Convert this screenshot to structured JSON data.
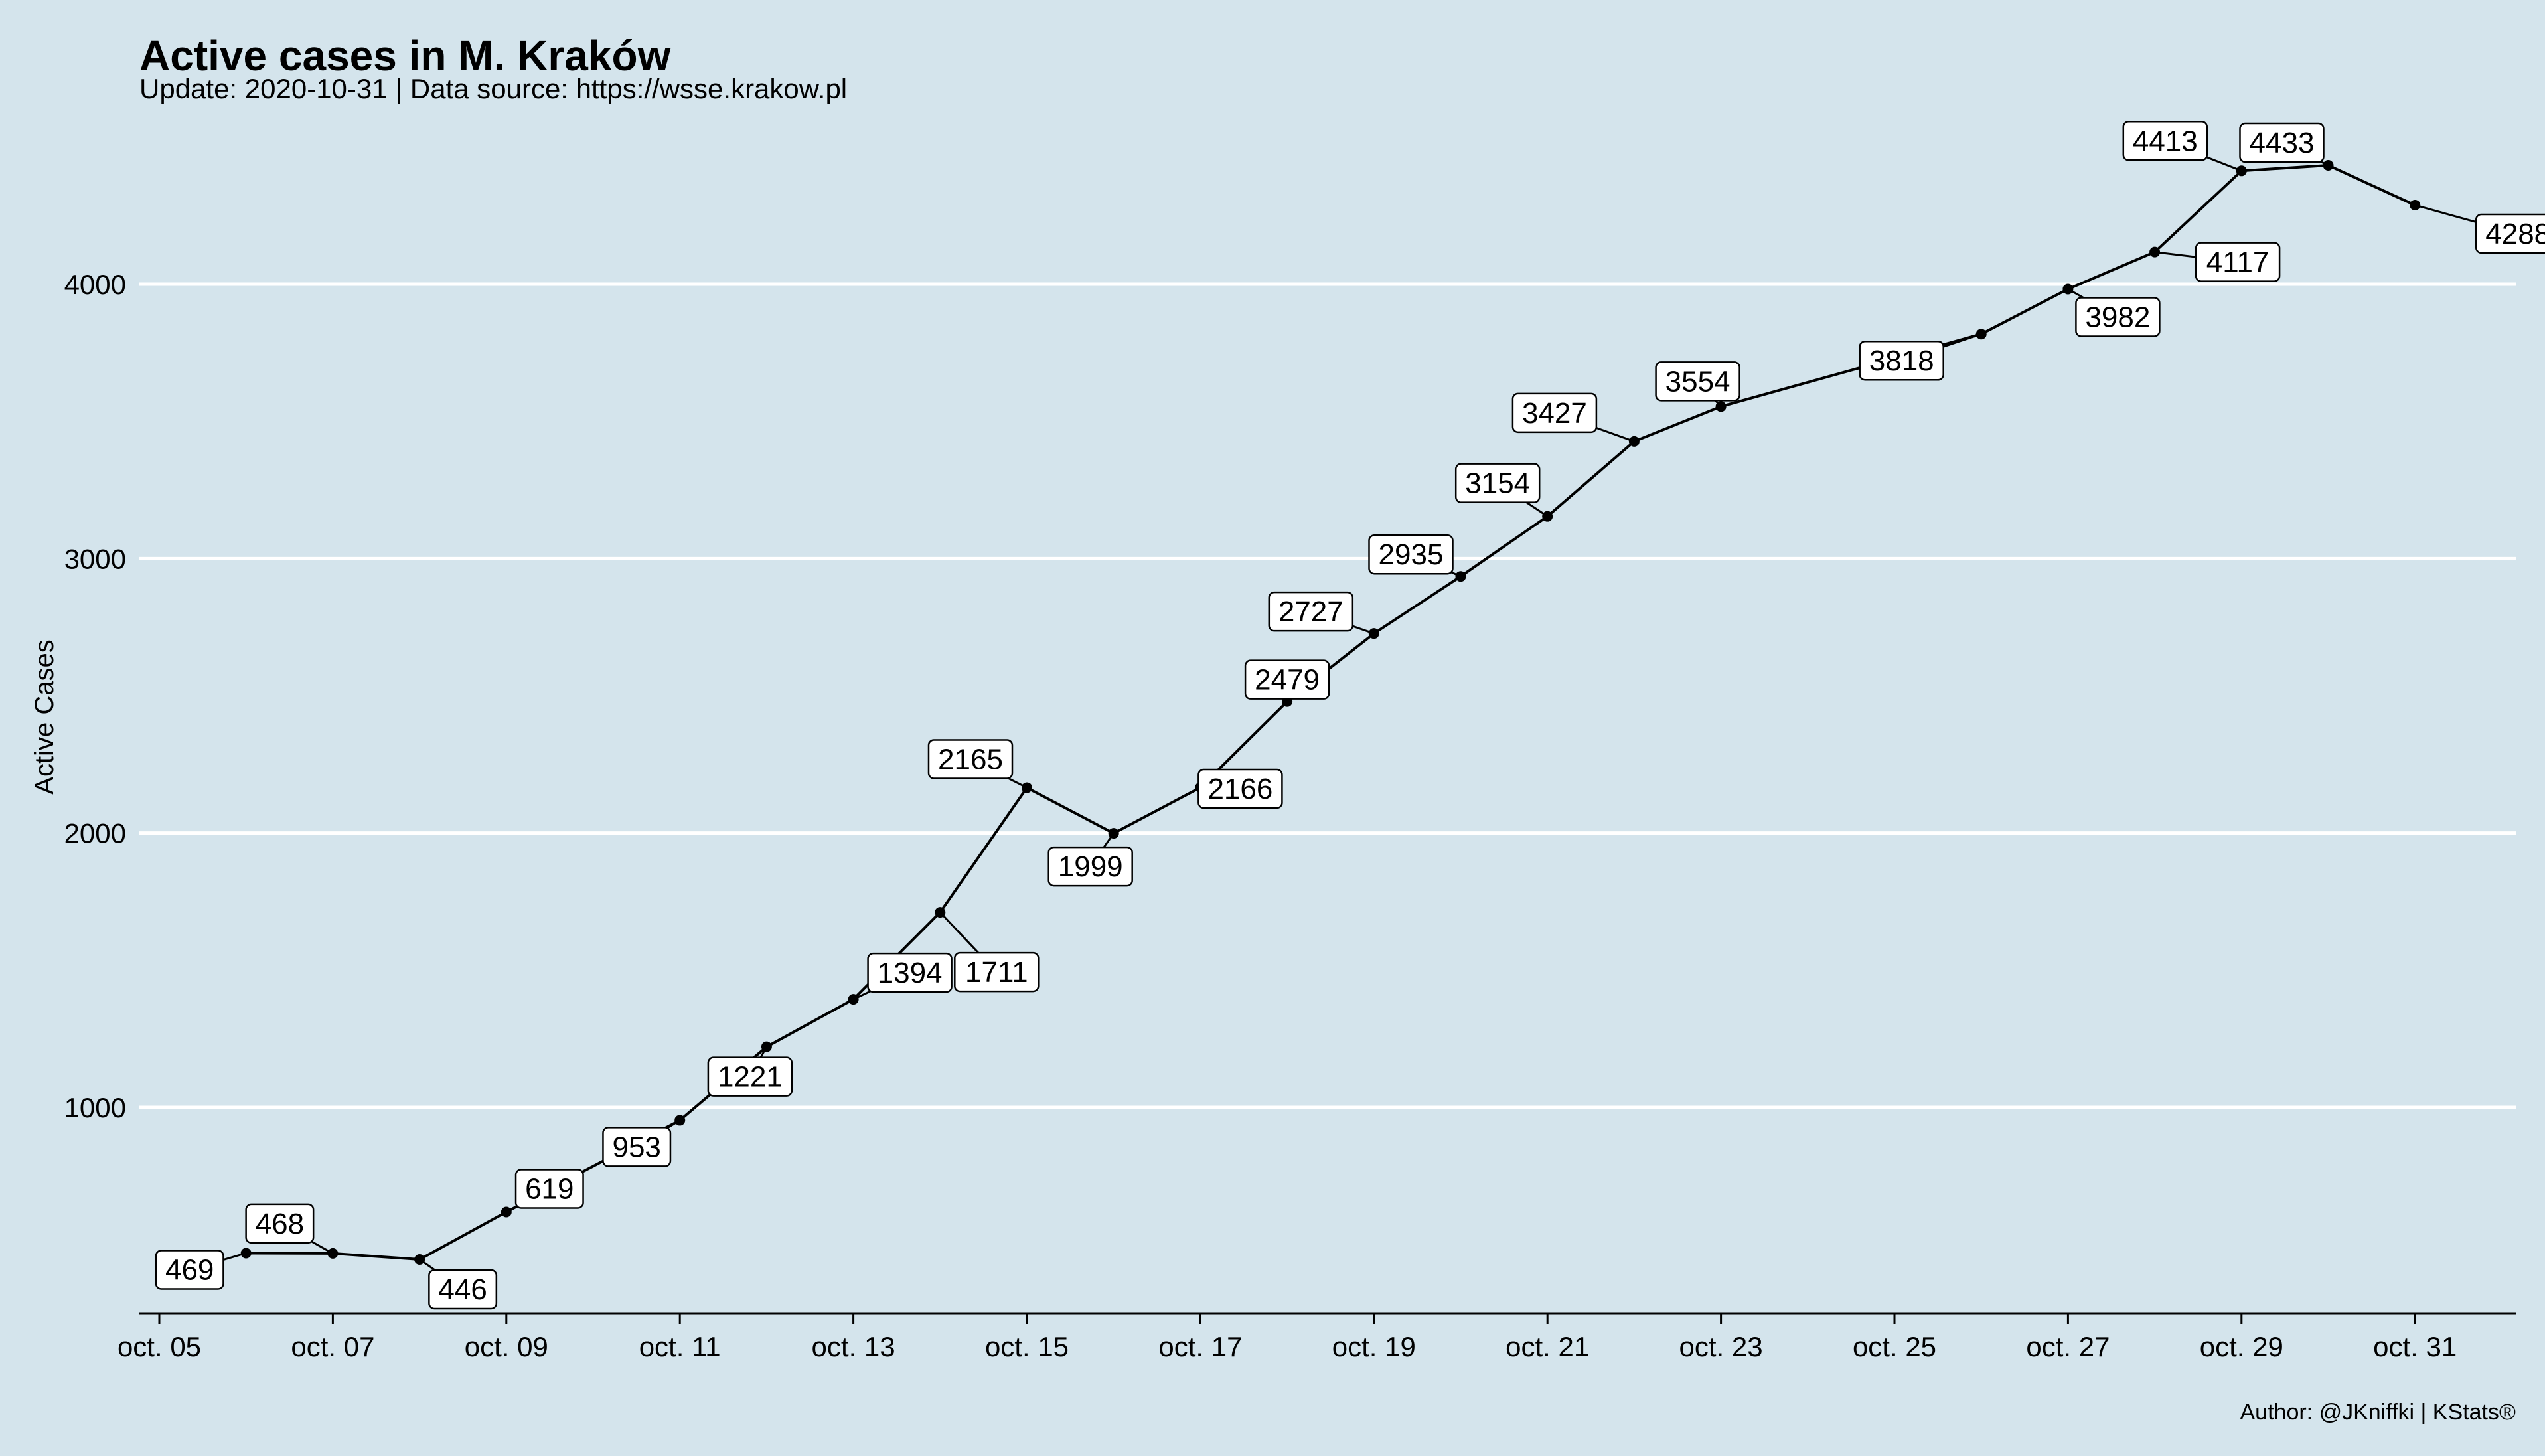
{
  "chart_data": {
    "type": "line",
    "title": "Active cases in M. Kraków",
    "subtitle": "Update: 2020-10-31 | Data source: https://wsse.krakow.pl",
    "ylabel": "Active Cases",
    "xlabel": "",
    "caption": "Author: @JKniffki | KStats®",
    "x_ticks": [
      "oct. 05",
      "oct. 07",
      "oct. 09",
      "oct. 11",
      "oct. 13",
      "oct. 15",
      "oct. 17",
      "oct. 19",
      "oct. 21",
      "oct. 23",
      "oct. 25",
      "oct. 27",
      "oct. 29",
      "oct. 31"
    ],
    "y_ticks": [
      1000,
      2000,
      3000,
      4000
    ],
    "ylim": [
      250,
      4600
    ],
    "xlim": [
      "2020-10-05",
      "2020-10-31"
    ],
    "grid": "horizontal major",
    "series": [
      {
        "points": [
          {
            "x": "2020-10-06",
            "y": 469,
            "label": "469"
          },
          {
            "x": "2020-10-07",
            "y": 468,
            "label": "468"
          },
          {
            "x": "2020-10-08",
            "y": 446,
            "label": "446"
          },
          {
            "x": "2020-10-09",
            "y": 619,
            "label": "619"
          },
          {
            "x": "2020-10-11",
            "y": 953,
            "label": "953"
          },
          {
            "x": "2020-10-12",
            "y": 1221,
            "label": "1221"
          },
          {
            "x": "2020-10-13",
            "y": 1394,
            "label": "1394"
          },
          {
            "x": "2020-10-14",
            "y": 1711,
            "label": "1711"
          },
          {
            "x": "2020-10-15",
            "y": 2165,
            "label": "2165"
          },
          {
            "x": "2020-10-16",
            "y": 1999,
            "label": "1999"
          },
          {
            "x": "2020-10-17",
            "y": 2166,
            "label": "2166"
          },
          {
            "x": "2020-10-18",
            "y": 2479,
            "label": "2479"
          },
          {
            "x": "2020-10-19",
            "y": 2727,
            "label": "2727"
          },
          {
            "x": "2020-10-20",
            "y": 2935,
            "label": "2935"
          },
          {
            "x": "2020-10-21",
            "y": 3154,
            "label": "3154"
          },
          {
            "x": "2020-10-22",
            "y": 3427,
            "label": "3427"
          },
          {
            "x": "2020-10-23",
            "y": 3554,
            "label": "3554"
          },
          {
            "x": "2020-10-26",
            "y": 3818,
            "label": "3818"
          },
          {
            "x": "2020-10-27",
            "y": 3982,
            "label": "3982"
          },
          {
            "x": "2020-10-28",
            "y": 4117,
            "label": "4117"
          },
          {
            "x": "2020-10-29",
            "y": 4413,
            "label": "4413"
          },
          {
            "x": "2020-10-30",
            "y": 4433,
            "label": "4433"
          },
          {
            "x": "2020-10-31",
            "y": 4288,
            "label": "4288"
          }
        ]
      }
    ],
    "colors": {
      "background": "#d4e4ec",
      "line": "#000000",
      "grid": "#ffffff",
      "label_fill": "#ffffff"
    }
  }
}
